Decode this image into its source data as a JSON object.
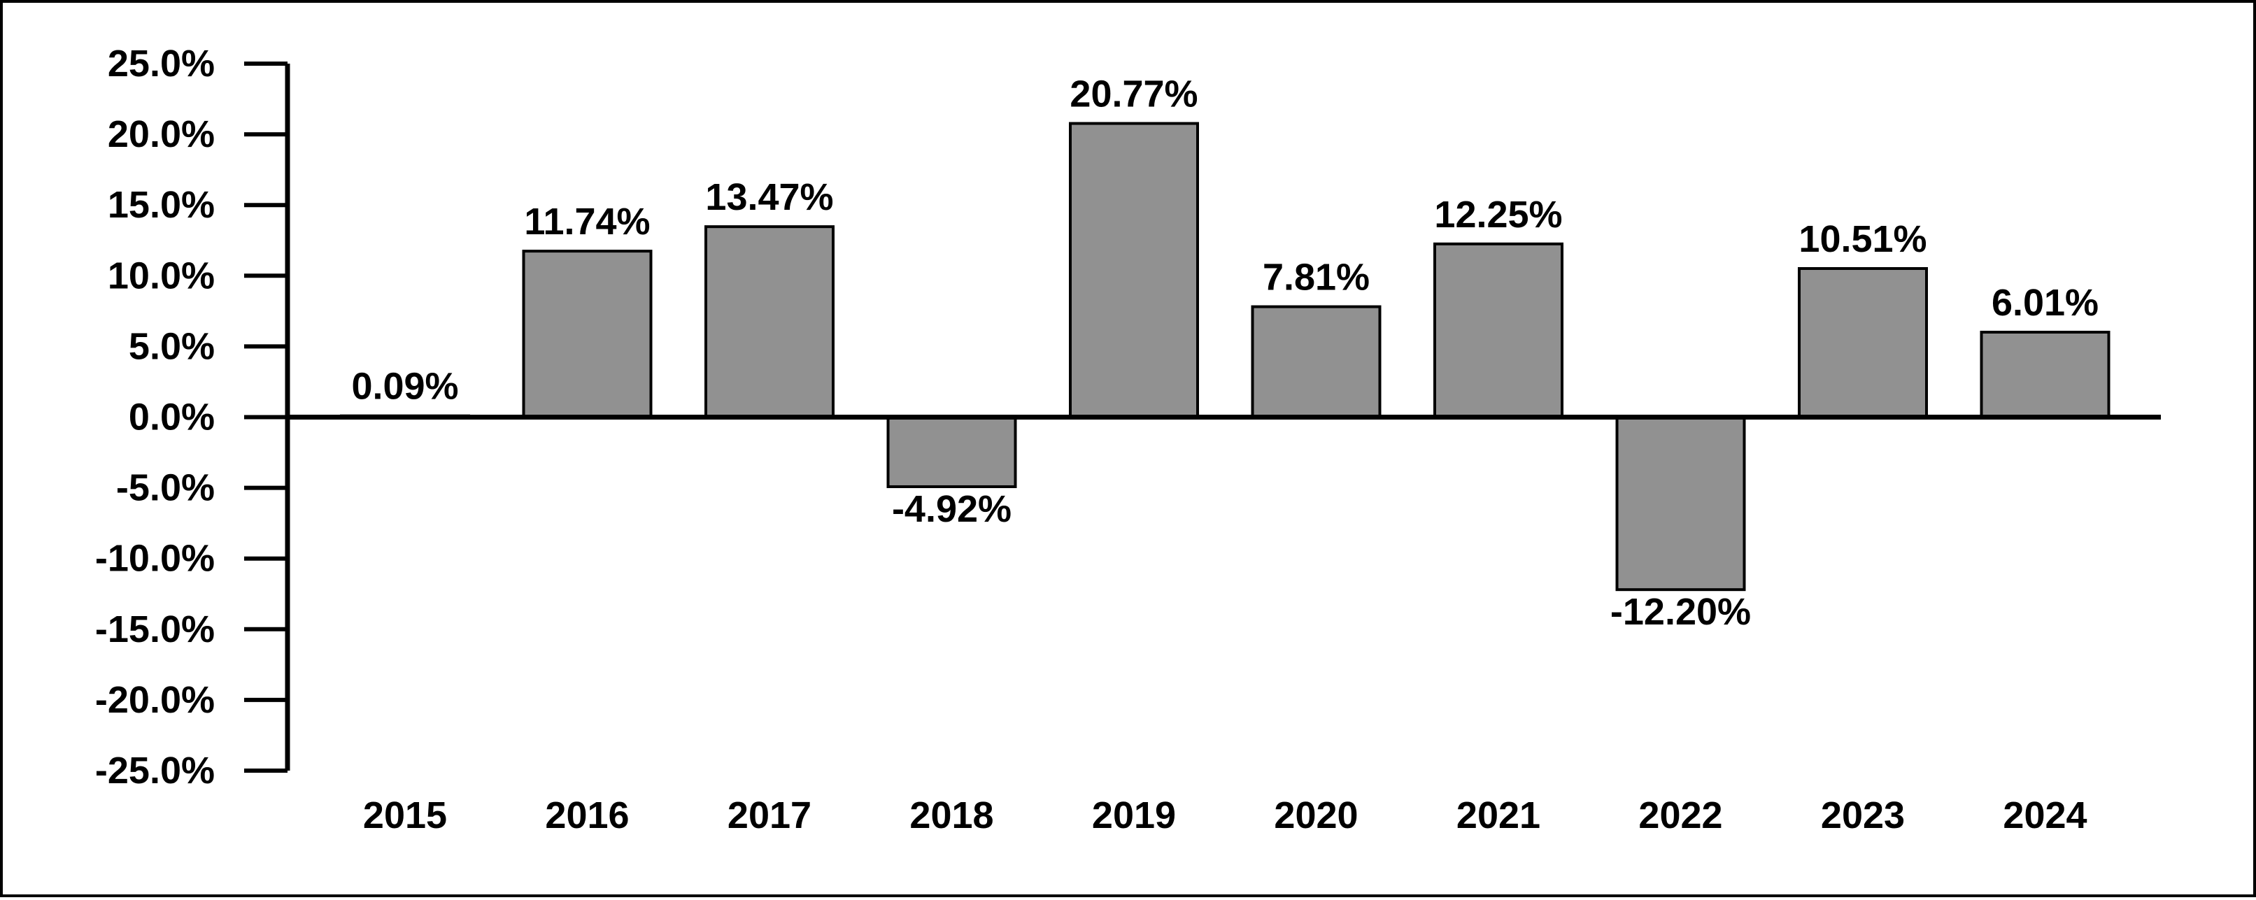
{
  "chart_data": {
    "type": "bar",
    "categories": [
      "2015",
      "2016",
      "2017",
      "2018",
      "2019",
      "2020",
      "2021",
      "2022",
      "2023",
      "2024"
    ],
    "values": [
      0.09,
      11.74,
      13.47,
      -4.92,
      20.77,
      7.81,
      12.25,
      -12.2,
      10.51,
      6.01
    ],
    "data_labels": [
      "0.09%",
      "11.74%",
      "13.47%",
      "-4.92%",
      "20.77%",
      "7.81%",
      "12.25%",
      "-12.20%",
      "10.51%",
      "6.01%"
    ],
    "yticks": [
      25,
      20,
      15,
      10,
      5,
      0,
      -5,
      -10,
      -15,
      -20,
      -25
    ],
    "ytick_labels": [
      "25.0%",
      "20.0%",
      "15.0%",
      "10.0%",
      "5.0%",
      "0.0%",
      "-5.0%",
      "-10.0%",
      "-15.0%",
      "-20.0%",
      "-25.0%"
    ],
    "ylim": [
      -25,
      25
    ],
    "title": "",
    "xlabel": "",
    "ylabel": "",
    "grid": false,
    "legend": "none",
    "bar_color": "#919191",
    "bar_edge_color": "#000000",
    "axis_color": "#000000"
  }
}
